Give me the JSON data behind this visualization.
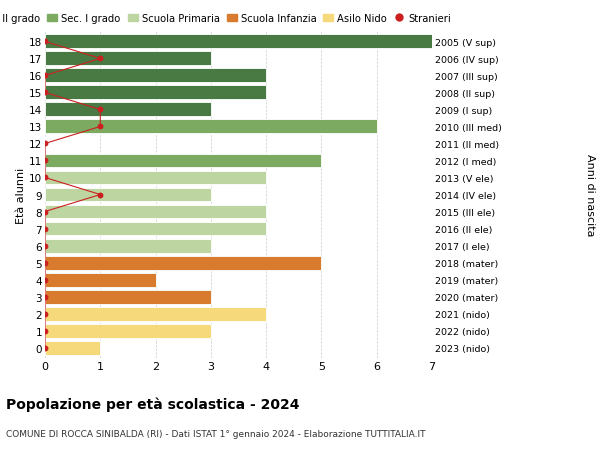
{
  "ages": [
    18,
    17,
    16,
    15,
    14,
    13,
    12,
    11,
    10,
    9,
    8,
    7,
    6,
    5,
    4,
    3,
    2,
    1,
    0
  ],
  "years": [
    "2005 (V sup)",
    "2006 (IV sup)",
    "2007 (III sup)",
    "2008 (II sup)",
    "2009 (I sup)",
    "2010 (III med)",
    "2011 (II med)",
    "2012 (I med)",
    "2013 (V ele)",
    "2014 (IV ele)",
    "2015 (III ele)",
    "2016 (II ele)",
    "2017 (I ele)",
    "2018 (mater)",
    "2019 (mater)",
    "2020 (mater)",
    "2021 (nido)",
    "2022 (nido)",
    "2023 (nido)"
  ],
  "bar_values": [
    7,
    3,
    4,
    4,
    3,
    6,
    0,
    5,
    4,
    3,
    4,
    4,
    3,
    5,
    2,
    3,
    4,
    3,
    1
  ],
  "bar_colors_by_age": [
    "#4a7a44",
    "#4a7a44",
    "#4a7a44",
    "#4a7a44",
    "#4a7a44",
    "#7caa60",
    "#7caa60",
    "#7caa60",
    "#bdd5a0",
    "#bdd5a0",
    "#bdd5a0",
    "#bdd5a0",
    "#bdd5a0",
    "#d97b2e",
    "#d97b2e",
    "#d97b2e",
    "#f5d97a",
    "#f5d97a",
    "#f5d97a"
  ],
  "stranieri_x": [
    0,
    1,
    0,
    0,
    1,
    1,
    0,
    0,
    0,
    1,
    0,
    0,
    0,
    0,
    0,
    0,
    0,
    0,
    0
  ],
  "color_sec2": "#4a7a44",
  "color_sec1": "#7caa60",
  "color_primaria": "#bdd5a0",
  "color_infanzia": "#d97b2e",
  "color_nido": "#f5d97a",
  "color_stranieri": "#cc2020",
  "title": "Popolazione per età scolastica - 2024",
  "subtitle": "COMUNE DI ROCCA SINIBALDA (RI) - Dati ISTAT 1° gennaio 2024 - Elaborazione TUTTITALIA.IT",
  "ylabel_left": "Età alunni",
  "ylabel_right": "Anni di nascita",
  "xlim": [
    0,
    7
  ],
  "bg_color": "#ffffff",
  "legend_labels": [
    "Sec. II grado",
    "Sec. I grado",
    "Scuola Primaria",
    "Scuola Infanzia",
    "Asilo Nido",
    "Stranieri"
  ],
  "legend_colors": [
    "#4a7a44",
    "#7caa60",
    "#bdd5a0",
    "#d97b2e",
    "#f5d97a",
    "#cc2020"
  ]
}
